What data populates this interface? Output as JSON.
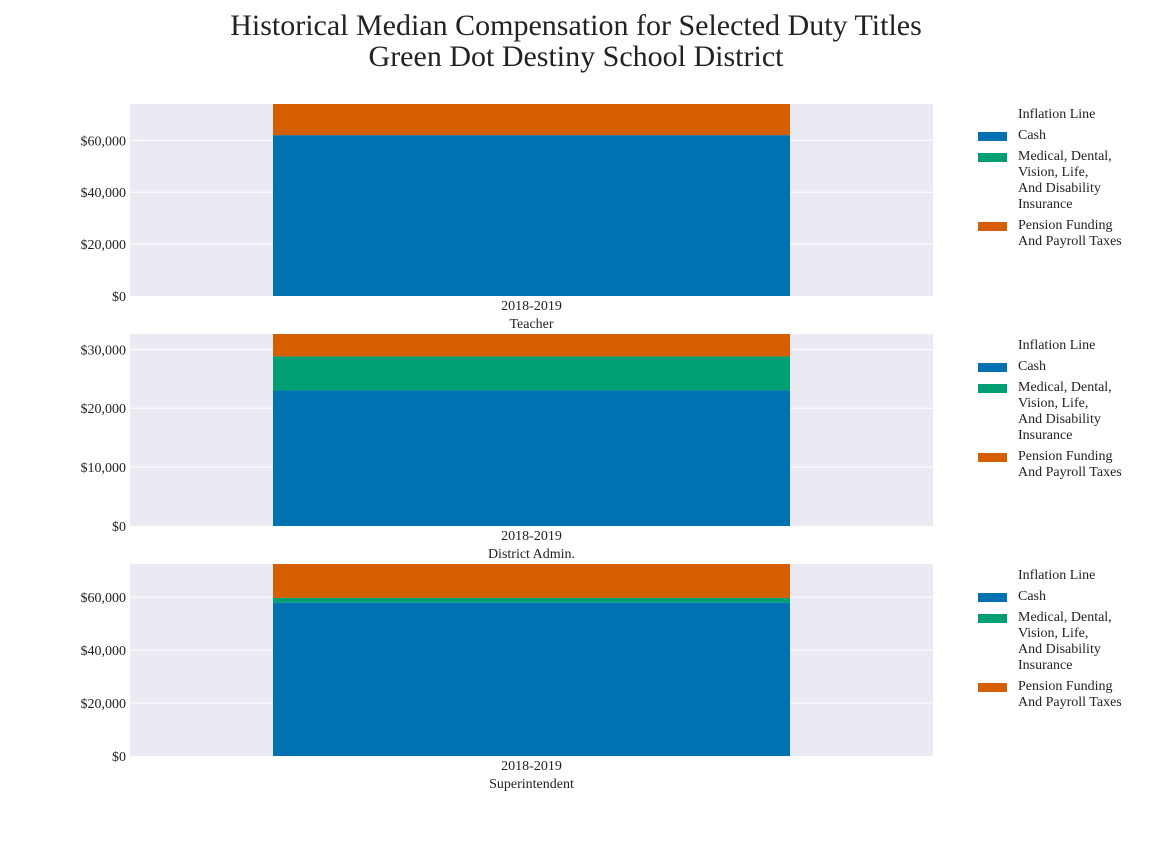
{
  "title_line1": "Historical Median Compensation for Selected Duty Titles",
  "title_line2": "Green Dot Destiny School District",
  "colors": {
    "background": "#ffffff",
    "plot_bg": "#eaeaf2",
    "grid": "#ffffff",
    "inflation": "#444444",
    "cash": "#0072b2",
    "medical": "#009e73",
    "pension": "#d55e00"
  },
  "legend": [
    {
      "key": "inflation",
      "label": "Inflation Line",
      "swatch": false
    },
    {
      "key": "cash",
      "label": "Cash",
      "swatch": true
    },
    {
      "key": "medical",
      "label": "Medical, Dental,\nVision, Life,\nAnd Disability\nInsurance",
      "swatch": true
    },
    {
      "key": "pension",
      "label": "Pension Funding\nAnd Payroll Taxes",
      "swatch": true
    }
  ],
  "chart_data": [
    {
      "type": "bar",
      "stacked": true,
      "title": "Teacher",
      "categories": [
        "2018-2019"
      ],
      "ylim": [
        0,
        74000
      ],
      "yticks": [
        0,
        20000,
        40000,
        60000
      ],
      "ytick_labels": [
        "$0",
        "$20,000",
        "$40,000",
        "$60,000"
      ],
      "series": [
        {
          "name": "Cash",
          "key": "cash",
          "values": [
            62000
          ]
        },
        {
          "name": "Medical, Dental, Vision, Life, And Disability Insurance",
          "key": "medical",
          "values": [
            0
          ]
        },
        {
          "name": "Pension Funding And Payroll Taxes",
          "key": "pension",
          "values": [
            12000
          ]
        }
      ]
    },
    {
      "type": "bar",
      "stacked": true,
      "title": "District Admin.",
      "categories": [
        "2018-2019"
      ],
      "ylim": [
        0,
        32600
      ],
      "yticks": [
        0,
        10000,
        20000,
        30000
      ],
      "ytick_labels": [
        "$0",
        "$10,000",
        "$20,000",
        "$30,000"
      ],
      "series": [
        {
          "name": "Cash",
          "key": "cash",
          "values": [
            23000
          ]
        },
        {
          "name": "Medical, Dental, Vision, Life, And Disability Insurance",
          "key": "medical",
          "values": [
            5800
          ]
        },
        {
          "name": "Pension Funding And Payroll Taxes",
          "key": "pension",
          "values": [
            3800
          ]
        }
      ]
    },
    {
      "type": "bar",
      "stacked": true,
      "title": "Superintendent",
      "categories": [
        "2018-2019"
      ],
      "ylim": [
        0,
        72500
      ],
      "yticks": [
        0,
        20000,
        40000,
        60000
      ],
      "ytick_labels": [
        "$0",
        "$20,000",
        "$40,000",
        "$60,000"
      ],
      "series": [
        {
          "name": "Cash",
          "key": "cash",
          "values": [
            57900
          ]
        },
        {
          "name": "Medical, Dental, Vision, Life, And Disability Insurance",
          "key": "medical",
          "values": [
            1800
          ]
        },
        {
          "name": "Pension Funding And Payroll Taxes",
          "key": "pension",
          "values": [
            12800
          ]
        }
      ]
    }
  ]
}
